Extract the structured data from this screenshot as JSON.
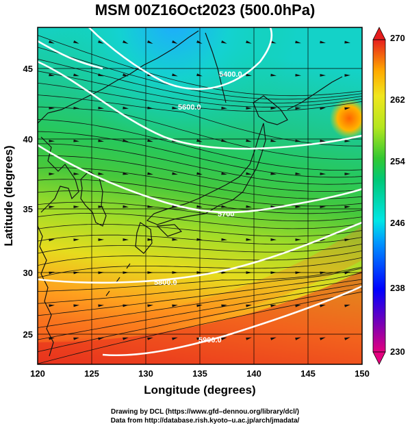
{
  "title": "MSM 00Z16Oct2023 (500.0hPa)",
  "x_axis": {
    "label": "Longitude (degrees)",
    "range": [
      120,
      150
    ],
    "ticks": [
      "120",
      "125",
      "130",
      "135",
      "140",
      "145",
      "150"
    ]
  },
  "y_axis": {
    "label": "Latitude  (degrees)",
    "range": [
      22.5,
      48
    ],
    "ticks": [
      "25",
      "30",
      "35",
      "40",
      "45"
    ]
  },
  "colorbar": {
    "min": 230,
    "max": 270,
    "labels": [
      "270",
      "262",
      "254",
      "246",
      "238",
      "230"
    ],
    "colors": [
      "#e4007f",
      "#4b0082",
      "#0000ff",
      "#0096ff",
      "#00e6e6",
      "#00d278",
      "#32c832",
      "#96dc1e",
      "#f0e61e",
      "#ffaa00",
      "#ff6400",
      "#e61e1e"
    ]
  },
  "contours": [
    {
      "label": "5400.0",
      "value": 5400
    },
    {
      "label": "5600.0",
      "value": 5600
    },
    {
      "label": "5700",
      "value": 5700
    },
    {
      "label": "5800.0",
      "value": 5800
    },
    {
      "label": "5900.0",
      "value": 5900
    }
  ],
  "credits": {
    "line1": "Drawing by DCL (https://www.gfd–dennou.org/library/dcl/)",
    "line2": "Data from http://database.rish.kyoto–u.ac.jp/arch/jmadata/"
  },
  "icons": {
    "colorbar_top": "triangle-up-icon",
    "colorbar_bottom": "triangle-down-icon"
  }
}
